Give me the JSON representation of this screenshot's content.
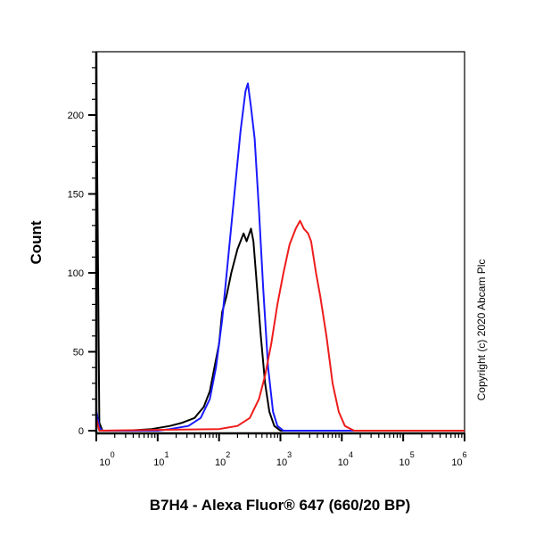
{
  "chart_data": {
    "type": "line",
    "title": "",
    "xlabel": "B7H4 - Alexa Fluor® 647 (660/20 BP)",
    "ylabel": "Count",
    "xscale": "log10",
    "xlim_log10": [
      0,
      6
    ],
    "ylim": [
      0,
      240
    ],
    "x_ticks": [
      {
        "base": "10",
        "exp": "0"
      },
      {
        "base": "10",
        "exp": "1"
      },
      {
        "base": "10",
        "exp": "2"
      },
      {
        "base": "10",
        "exp": "3"
      },
      {
        "base": "10",
        "exp": "4"
      },
      {
        "base": "10",
        "exp": "5"
      },
      {
        "base": "10",
        "exp": "6"
      }
    ],
    "y_ticks": [
      0,
      50,
      100,
      150,
      200
    ],
    "annotation": "Copyright (c) 2020 Abcam Plc",
    "grid": false,
    "series": [
      {
        "name": "black",
        "color": "#000000",
        "points_log10x_count": [
          [
            0,
            232
          ],
          [
            0.05,
            5
          ],
          [
            0.1,
            0
          ],
          [
            0.5,
            0
          ],
          [
            0.9,
            1
          ],
          [
            1.2,
            3
          ],
          [
            1.4,
            5
          ],
          [
            1.6,
            8
          ],
          [
            1.75,
            15
          ],
          [
            1.85,
            25
          ],
          [
            1.95,
            45
          ],
          [
            2.0,
            55
          ],
          [
            2.05,
            75
          ],
          [
            2.12,
            85
          ],
          [
            2.2,
            100
          ],
          [
            2.3,
            115
          ],
          [
            2.4,
            125
          ],
          [
            2.45,
            120
          ],
          [
            2.52,
            128
          ],
          [
            2.56,
            120
          ],
          [
            2.6,
            100
          ],
          [
            2.68,
            60
          ],
          [
            2.75,
            30
          ],
          [
            2.82,
            12
          ],
          [
            2.9,
            3
          ],
          [
            3.0,
            0
          ],
          [
            6,
            0
          ]
        ]
      },
      {
        "name": "blue",
        "color": "#1a1aff",
        "points_log10x_count": [
          [
            0,
            13
          ],
          [
            0.05,
            2
          ],
          [
            0.1,
            0
          ],
          [
            1,
            0
          ],
          [
            1.2,
            1
          ],
          [
            1.5,
            3
          ],
          [
            1.7,
            8
          ],
          [
            1.85,
            20
          ],
          [
            1.95,
            40
          ],
          [
            2.05,
            70
          ],
          [
            2.15,
            110
          ],
          [
            2.25,
            150
          ],
          [
            2.35,
            190
          ],
          [
            2.43,
            215
          ],
          [
            2.47,
            220
          ],
          [
            2.52,
            205
          ],
          [
            2.58,
            185
          ],
          [
            2.65,
            140
          ],
          [
            2.72,
            90
          ],
          [
            2.8,
            40
          ],
          [
            2.88,
            12
          ],
          [
            2.95,
            3
          ],
          [
            3.05,
            0
          ],
          [
            6,
            0
          ]
        ]
      },
      {
        "name": "red",
        "color": "#ee1c1c",
        "points_log10x_count": [
          [
            0,
            8
          ],
          [
            0.05,
            0
          ],
          [
            2.0,
            1
          ],
          [
            2.3,
            3
          ],
          [
            2.5,
            8
          ],
          [
            2.65,
            20
          ],
          [
            2.75,
            35
          ],
          [
            2.85,
            55
          ],
          [
            2.95,
            80
          ],
          [
            3.05,
            100
          ],
          [
            3.15,
            118
          ],
          [
            3.25,
            128
          ],
          [
            3.32,
            133
          ],
          [
            3.38,
            128
          ],
          [
            3.45,
            125
          ],
          [
            3.5,
            120
          ],
          [
            3.58,
            100
          ],
          [
            3.65,
            85
          ],
          [
            3.75,
            60
          ],
          [
            3.85,
            30
          ],
          [
            3.95,
            12
          ],
          [
            4.05,
            3
          ],
          [
            4.2,
            0
          ],
          [
            6,
            0
          ]
        ]
      }
    ]
  }
}
